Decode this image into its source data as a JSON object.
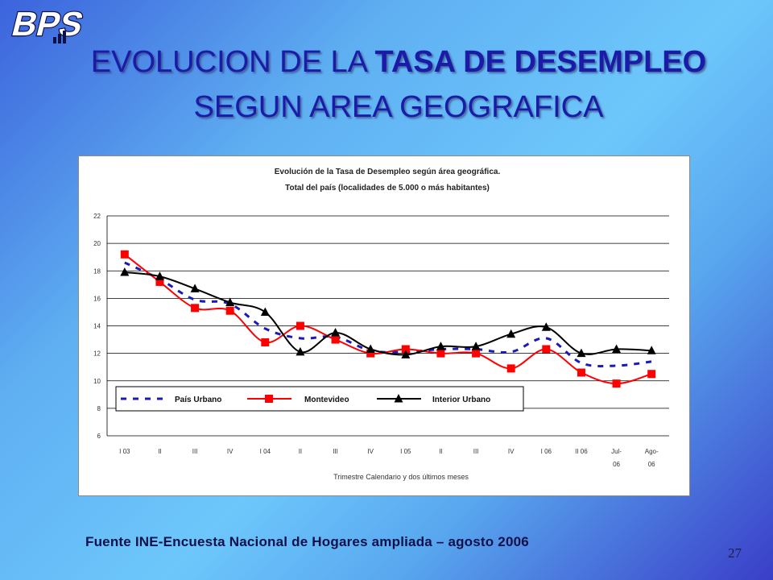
{
  "slide": {
    "logo_text": "BPS",
    "title_line1_normal": "EVOLUCION DE LA ",
    "title_line1_bold": "TASA DE DESEMPLEO",
    "title_line2": "SEGUN AREA GEOGRAFICA",
    "source": "Fuente INE-Encuesta Nacional de Hogares ampliada – agosto 2006",
    "page_number": "27",
    "colors": {
      "title": "#1b1ba8",
      "background_mid": "#6dc7fb",
      "background_edge": "#3a3ec8"
    }
  },
  "chart_data": {
    "type": "line",
    "title": "Evolución de la Tasa de Desempleo según área geográfica.",
    "subtitle": "Total del país (localidades de 5.000 o más habitantes)",
    "xlabel": "Trimestre Calendario y dos últimos meses",
    "ylabel": "",
    "ylim": [
      6,
      22
    ],
    "yticks": [
      "6",
      "8",
      "10",
      "12",
      "14",
      "16",
      "18",
      "20",
      "22"
    ],
    "grid": true,
    "legend_position": "bottom-inside",
    "categories": [
      [
        "I 03"
      ],
      [
        "II"
      ],
      [
        "III"
      ],
      [
        "IV"
      ],
      [
        "I 04"
      ],
      [
        "II"
      ],
      [
        "III"
      ],
      [
        "IV"
      ],
      [
        "I 05"
      ],
      [
        "II"
      ],
      [
        "III"
      ],
      [
        "IV"
      ],
      [
        "I 06"
      ],
      [
        "II 06"
      ],
      [
        "Jul-",
        "06"
      ],
      [
        "Ago-",
        "06"
      ]
    ],
    "series": [
      {
        "name": "País Urbano",
        "color": "#1a1ab8",
        "style": "dashed",
        "marker": "none",
        "values": [
          18.6,
          17.4,
          15.9,
          15.6,
          13.8,
          13.1,
          13.2,
          12.2,
          12.1,
          12.3,
          12.3,
          12.1,
          13.1,
          11.3,
          11.1,
          11.4
        ]
      },
      {
        "name": "Montevideo",
        "color": "#ff0000",
        "style": "solid",
        "marker": "square",
        "values": [
          19.2,
          17.2,
          15.3,
          15.1,
          12.8,
          14.0,
          13.0,
          12.0,
          12.3,
          12.0,
          12.0,
          10.9,
          12.3,
          10.6,
          9.8,
          10.5
        ]
      },
      {
        "name": "Interior Urbano",
        "color": "#000000",
        "style": "solid",
        "marker": "triangle",
        "values": [
          17.9,
          17.6,
          16.7,
          15.7,
          15.0,
          12.1,
          13.5,
          12.3,
          11.9,
          12.5,
          12.5,
          13.4,
          13.9,
          12.0,
          12.3,
          12.2
        ]
      }
    ]
  }
}
